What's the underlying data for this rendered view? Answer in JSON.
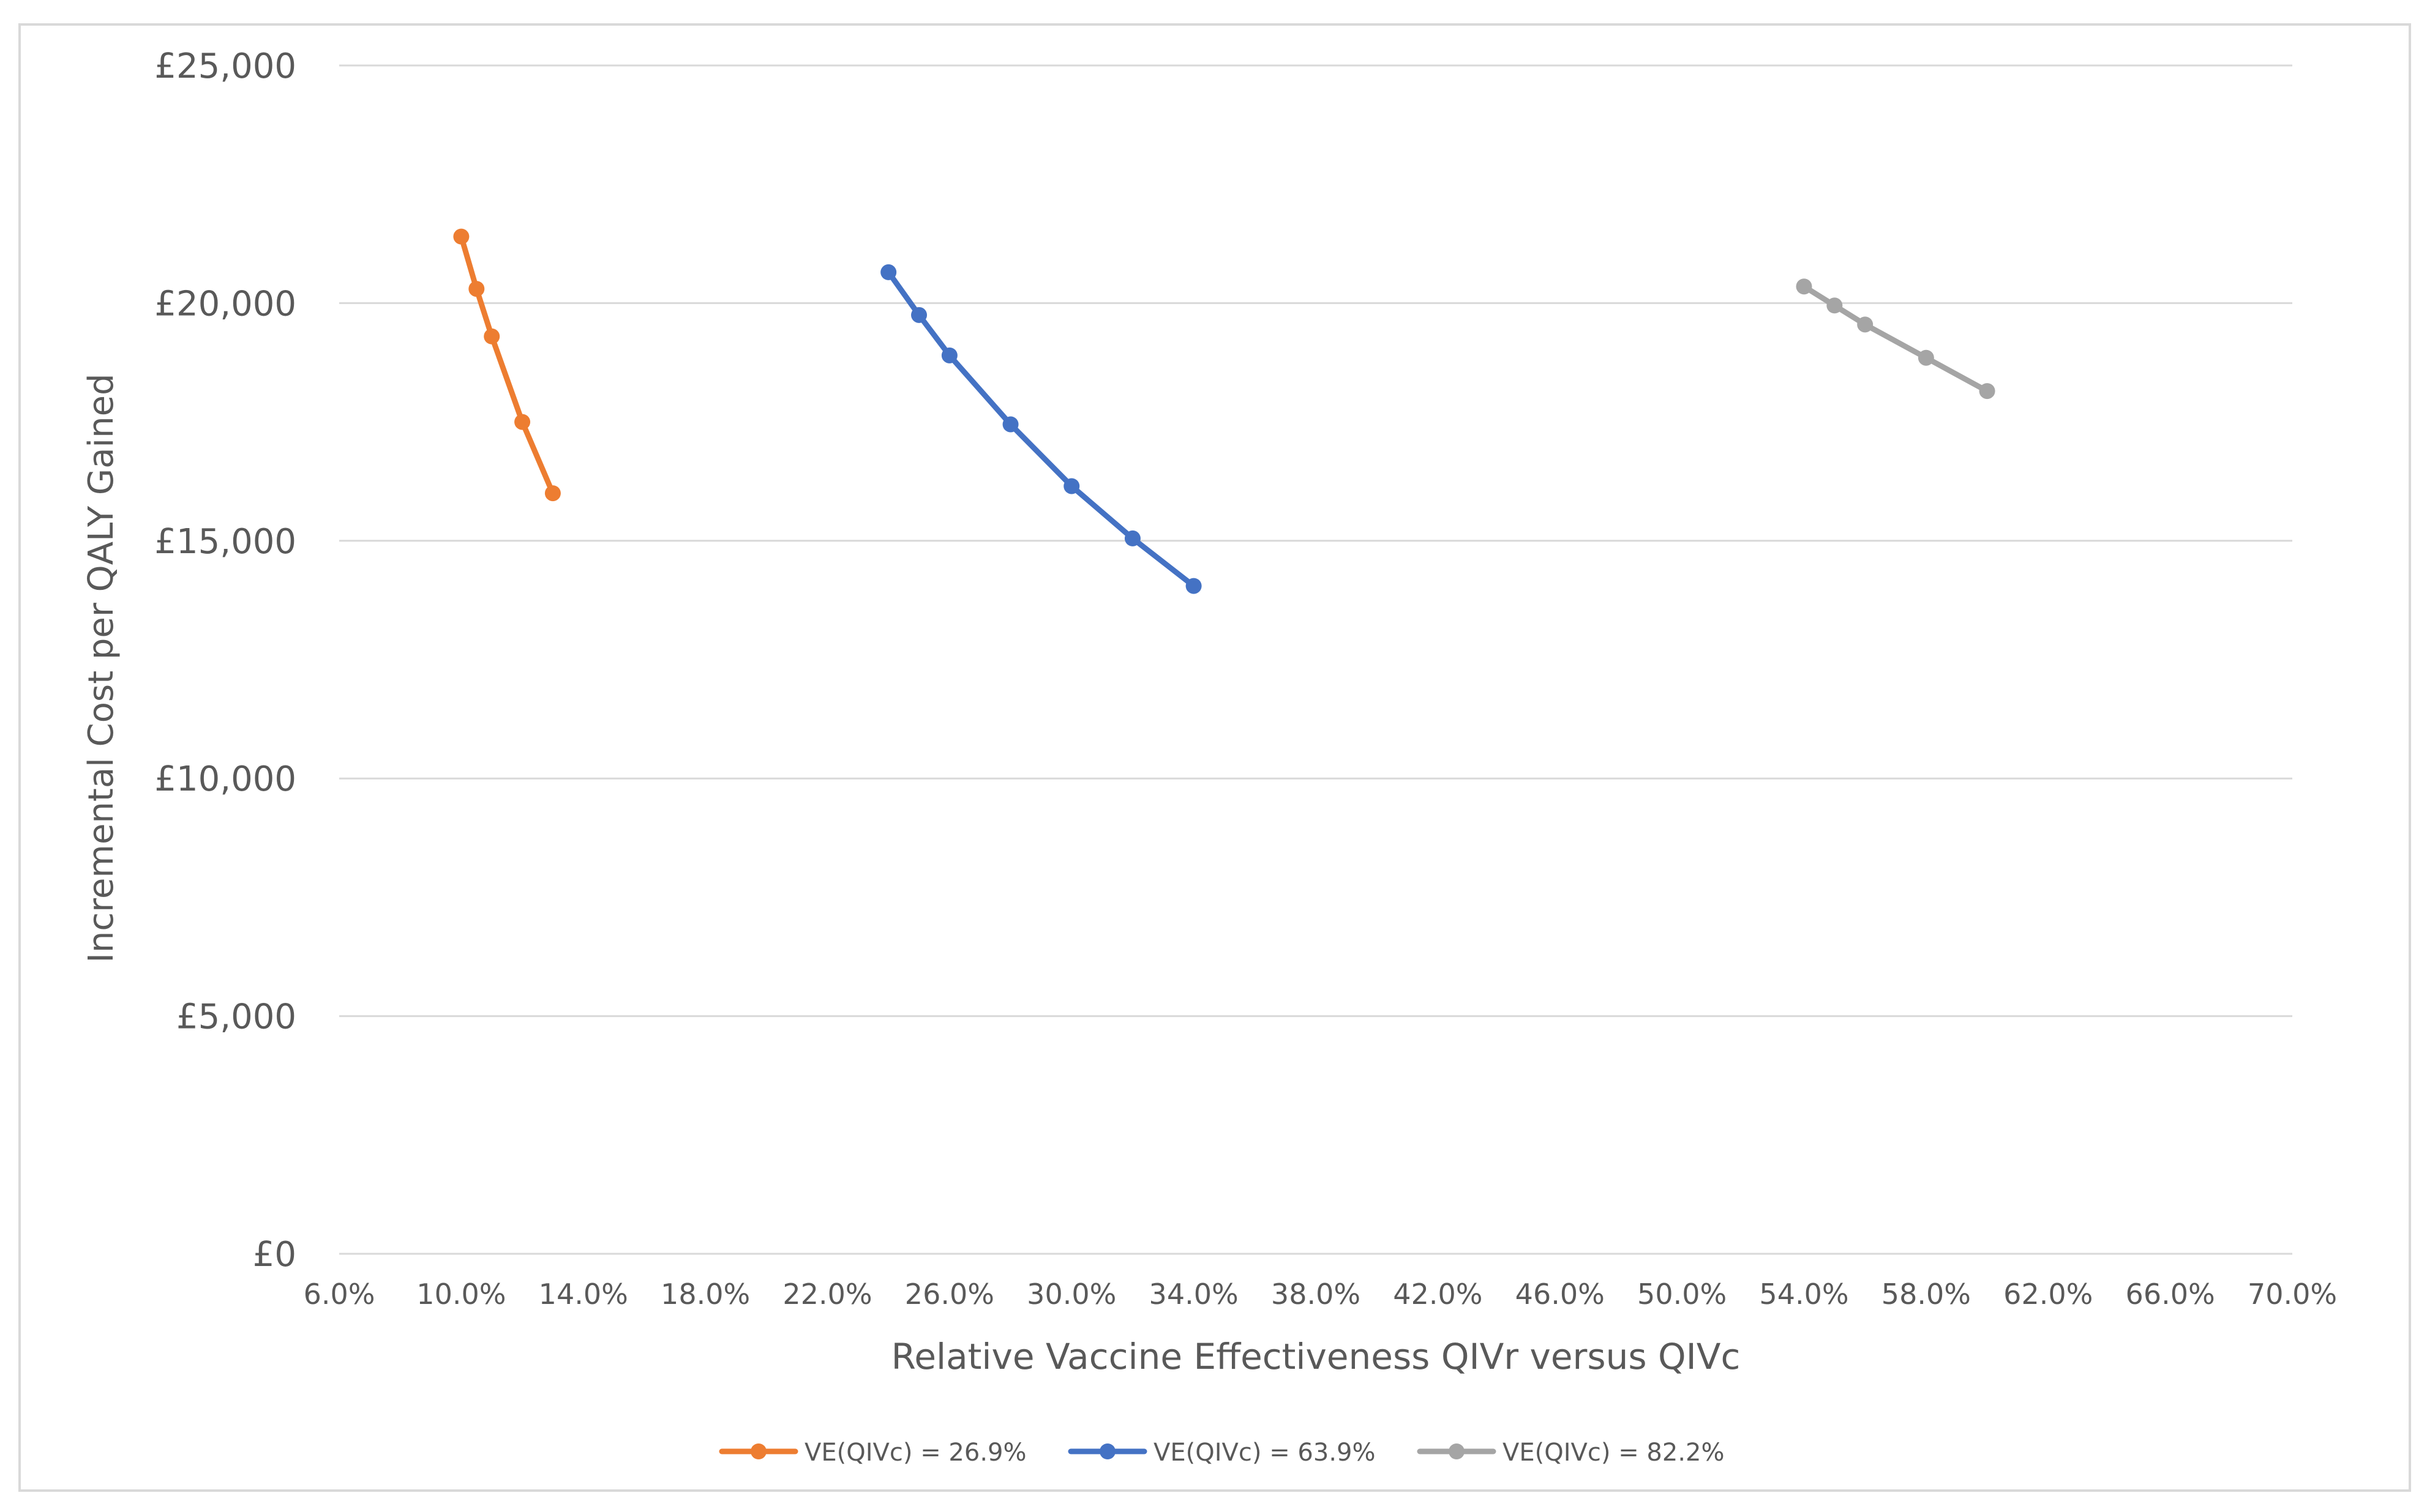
{
  "chart_data": {
    "type": "line",
    "title": "",
    "xlabel": "Relative Vaccine Effectiveness QIVr versus QIVc",
    "ylabel": "Incremental Cost per QALY Gained",
    "xlim": [
      0.06,
      0.7
    ],
    "ylim": [
      0,
      25000
    ],
    "x_ticks": [
      0.06,
      0.1,
      0.14,
      0.18,
      0.22,
      0.26,
      0.3,
      0.34,
      0.38,
      0.42,
      0.46,
      0.5,
      0.54,
      0.58,
      0.62,
      0.66,
      0.7
    ],
    "x_tick_labels": [
      "6.0%",
      "10.0%",
      "14.0%",
      "18.0%",
      "22.0%",
      "26.0%",
      "30.0%",
      "34.0%",
      "38.0%",
      "42.0%",
      "46.0%",
      "50.0%",
      "54.0%",
      "58.0%",
      "62.0%",
      "66.0%",
      "70.0%"
    ],
    "y_ticks": [
      0,
      5000,
      10000,
      15000,
      20000,
      25000
    ],
    "y_tick_labels": [
      "£0",
      "£5,000",
      "£10,000",
      "£15,000",
      "£20,000",
      "£25,000"
    ],
    "grid": true,
    "legend_position": "bottom",
    "series": [
      {
        "name": "VE(QIVc) = 26.9%",
        "color": "#ed7d31",
        "x": [
          0.1,
          0.105,
          0.11,
          0.12,
          0.13
        ],
        "y": [
          21400,
          20300,
          19300,
          17500,
          16000
        ]
      },
      {
        "name": "VE(QIVc) = 63.9%",
        "color": "#4472c4",
        "x": [
          0.24,
          0.25,
          0.26,
          0.28,
          0.3,
          0.32,
          0.34
        ],
        "y": [
          20650,
          19750,
          18900,
          17450,
          16150,
          15050,
          14050
        ]
      },
      {
        "name": "VE(QIVc) = 82.2%",
        "color": "#a5a5a5",
        "x": [
          0.54,
          0.55,
          0.56,
          0.58,
          0.6
        ],
        "y": [
          20350,
          19950,
          19550,
          18850,
          18150
        ]
      }
    ]
  }
}
